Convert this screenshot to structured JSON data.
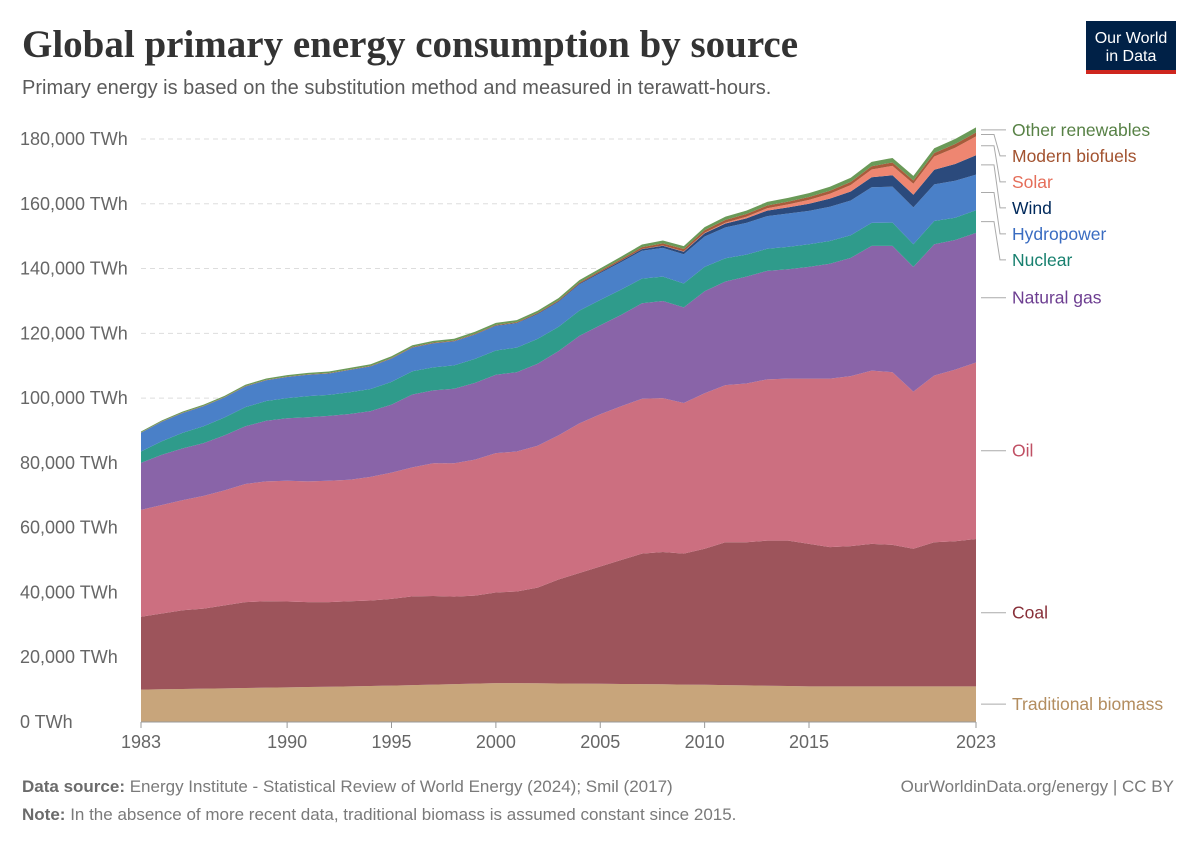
{
  "chart_data": {
    "type": "stacked-area",
    "title": "Global primary energy consumption by source",
    "subtitle": "Primary energy is based on the substitution method and measured in terawatt-hours.",
    "logo": [
      "Our World",
      "in Data"
    ],
    "source_label": "Data source:",
    "source": "Energy Institute - Statistical Review of World Energy (2024); Smil (2017)",
    "note_label": "Note:",
    "note": "In the absence of more recent data, traditional biomass is assumed constant since 2015.",
    "credit": "OurWorldinData.org/energy | CC BY",
    "x": [
      1983,
      1984,
      1985,
      1986,
      1987,
      1988,
      1989,
      1990,
      1991,
      1992,
      1993,
      1994,
      1995,
      1996,
      1997,
      1998,
      1999,
      2000,
      2001,
      2002,
      2003,
      2004,
      2005,
      2006,
      2007,
      2008,
      2009,
      2010,
      2011,
      2012,
      2013,
      2014,
      2015,
      2016,
      2017,
      2018,
      2019,
      2020,
      2021,
      2022,
      2023
    ],
    "xlim": [
      1983,
      2023
    ],
    "xticks": [
      1983,
      1990,
      1995,
      2000,
      2005,
      2010,
      2015,
      2023
    ],
    "ylim": [
      0,
      180000
    ],
    "yticks": [
      {
        "value": 0,
        "label": "0 TWh"
      },
      {
        "value": 20000,
        "label": "20,000 TWh"
      },
      {
        "value": 40000,
        "label": "40,000 TWh"
      },
      {
        "value": 60000,
        "label": "60,000 TWh"
      },
      {
        "value": 80000,
        "label": "80,000 TWh"
      },
      {
        "value": 100000,
        "label": "100,000 TWh"
      },
      {
        "value": 120000,
        "label": "120,000 TWh"
      },
      {
        "value": 140000,
        "label": "140,000 TWh"
      },
      {
        "value": 160000,
        "label": "160,000 TWh"
      },
      {
        "value": 180000,
        "label": "180,000 TWh"
      }
    ],
    "grid": true,
    "series": [
      {
        "name": "Traditional biomass",
        "color": "#c8a57b",
        "label_color": "#b38d5f",
        "values": [
          10000,
          10100,
          10200,
          10300,
          10400,
          10500,
          10600,
          10700,
          10800,
          10900,
          11000,
          11100,
          11250,
          11400,
          11550,
          11700,
          11850,
          12000,
          12000,
          11950,
          11900,
          11850,
          11800,
          11750,
          11700,
          11650,
          11550,
          11500,
          11400,
          11300,
          11200,
          11100,
          11000,
          11000,
          11000,
          11000,
          11000,
          11000,
          11000,
          11000,
          11000
        ]
      },
      {
        "name": "Coal",
        "color": "#9d545b",
        "label_color": "#883039",
        "values": [
          22500,
          23400,
          24300,
          24700,
          25600,
          26500,
          26700,
          26500,
          26200,
          26100,
          26300,
          26400,
          26750,
          27400,
          27350,
          27000,
          27150,
          28000,
          28300,
          29550,
          32100,
          34150,
          36200,
          38250,
          40300,
          40850,
          40450,
          42000,
          44100,
          44200,
          44800,
          44900,
          44000,
          43000,
          43300,
          44000,
          43700,
          42500,
          44500,
          44800,
          45500
        ]
      },
      {
        "name": "Oil",
        "color": "#cc6f80",
        "label_color": "#c05064",
        "values": [
          33000,
          33500,
          34000,
          34800,
          35500,
          36500,
          37000,
          37300,
          37300,
          37500,
          37500,
          38200,
          39000,
          39800,
          41000,
          41200,
          42000,
          43000,
          43200,
          43800,
          44500,
          46200,
          47000,
          47500,
          47800,
          47500,
          46500,
          48000,
          48500,
          49000,
          49800,
          50000,
          51000,
          52000,
          52500,
          53500,
          53300,
          48500,
          51500,
          53000,
          54500
        ]
      },
      {
        "name": "Natural gas",
        "color": "#8964a8",
        "label_color": "#6d3e91",
        "values": [
          14500,
          15500,
          16000,
          16300,
          17000,
          17800,
          18700,
          19300,
          19800,
          20000,
          20300,
          20300,
          21000,
          22500,
          22500,
          23000,
          23700,
          24200,
          24500,
          25300,
          26000,
          27000,
          27500,
          28200,
          29500,
          30000,
          29500,
          31500,
          32000,
          33000,
          33500,
          33800,
          34500,
          35500,
          36500,
          38500,
          39000,
          38500,
          40500,
          40000,
          40000
        ]
      },
      {
        "name": "Nuclear",
        "color": "#2f9b8b",
        "label_color": "#18806f",
        "values": [
          3500,
          4200,
          4800,
          5200,
          5500,
          5900,
          6100,
          6200,
          6500,
          6500,
          6700,
          6800,
          7000,
          7200,
          7100,
          7200,
          7400,
          7500,
          7600,
          7700,
          7500,
          7800,
          7800,
          7800,
          7600,
          7500,
          7400,
          7500,
          7200,
          6800,
          6800,
          6900,
          7000,
          7000,
          7000,
          7100,
          7200,
          7000,
          7200,
          6900,
          7000
        ]
      },
      {
        "name": "Hydropower",
        "color": "#4a80c8",
        "label_color": "#3a6cc1",
        "values": [
          5800,
          6000,
          6100,
          6200,
          6200,
          6400,
          6400,
          6500,
          6600,
          6600,
          6900,
          7000,
          7200,
          7300,
          7400,
          7400,
          7500,
          7600,
          7500,
          7600,
          7700,
          8100,
          8300,
          8500,
          8600,
          8900,
          9000,
          9400,
          9500,
          9800,
          10100,
          10300,
          10300,
          10600,
          10700,
          11000,
          11100,
          11400,
          11300,
          11400,
          11000
        ]
      },
      {
        "name": "Wind",
        "color": "#2b4a7c",
        "label_color": "#00295b",
        "values": [
          0,
          0,
          0,
          0,
          0,
          0,
          0,
          0,
          0,
          0,
          0,
          0,
          20,
          30,
          40,
          60,
          80,
          100,
          130,
          170,
          200,
          250,
          300,
          400,
          500,
          650,
          800,
          1000,
          1200,
          1400,
          1700,
          1900,
          2200,
          2500,
          2800,
          3100,
          3500,
          3900,
          4500,
          5200,
          6000
        ]
      },
      {
        "name": "Solar",
        "color": "#ee8671",
        "label_color": "#e56e5a",
        "values": [
          0,
          0,
          0,
          0,
          0,
          0,
          0,
          0,
          0,
          0,
          0,
          0,
          0,
          0,
          0,
          0,
          0,
          0,
          0,
          0,
          0,
          0,
          10,
          20,
          30,
          60,
          90,
          150,
          300,
          500,
          700,
          900,
          1200,
          1500,
          2000,
          2400,
          2900,
          3400,
          4100,
          5000,
          5800
        ]
      },
      {
        "name": "Modern biofuels",
        "color": "#a85b3b",
        "label_color": "#a2522f",
        "values": [
          100,
          100,
          110,
          120,
          120,
          130,
          130,
          140,
          140,
          150,
          150,
          160,
          170,
          170,
          180,
          180,
          190,
          200,
          220,
          250,
          290,
          340,
          400,
          480,
          580,
          680,
          740,
          800,
          820,
          840,
          870,
          880,
          900,
          920,
          950,
          1000,
          1050,
          980,
          1080,
          1150,
          1200
        ]
      },
      {
        "name": "Other renewables",
        "color": "#6a9a58",
        "label_color": "#578145",
        "values": [
          300,
          320,
          340,
          360,
          380,
          400,
          420,
          440,
          460,
          480,
          500,
          510,
          520,
          540,
          560,
          580,
          600,
          620,
          640,
          660,
          690,
          720,
          750,
          790,
          830,
          870,
          910,
          960,
          1000,
          1050,
          1100,
          1150,
          1200,
          1250,
          1300,
          1350,
          1400,
          1420,
          1480,
          1540,
          1600
        ]
      }
    ]
  }
}
